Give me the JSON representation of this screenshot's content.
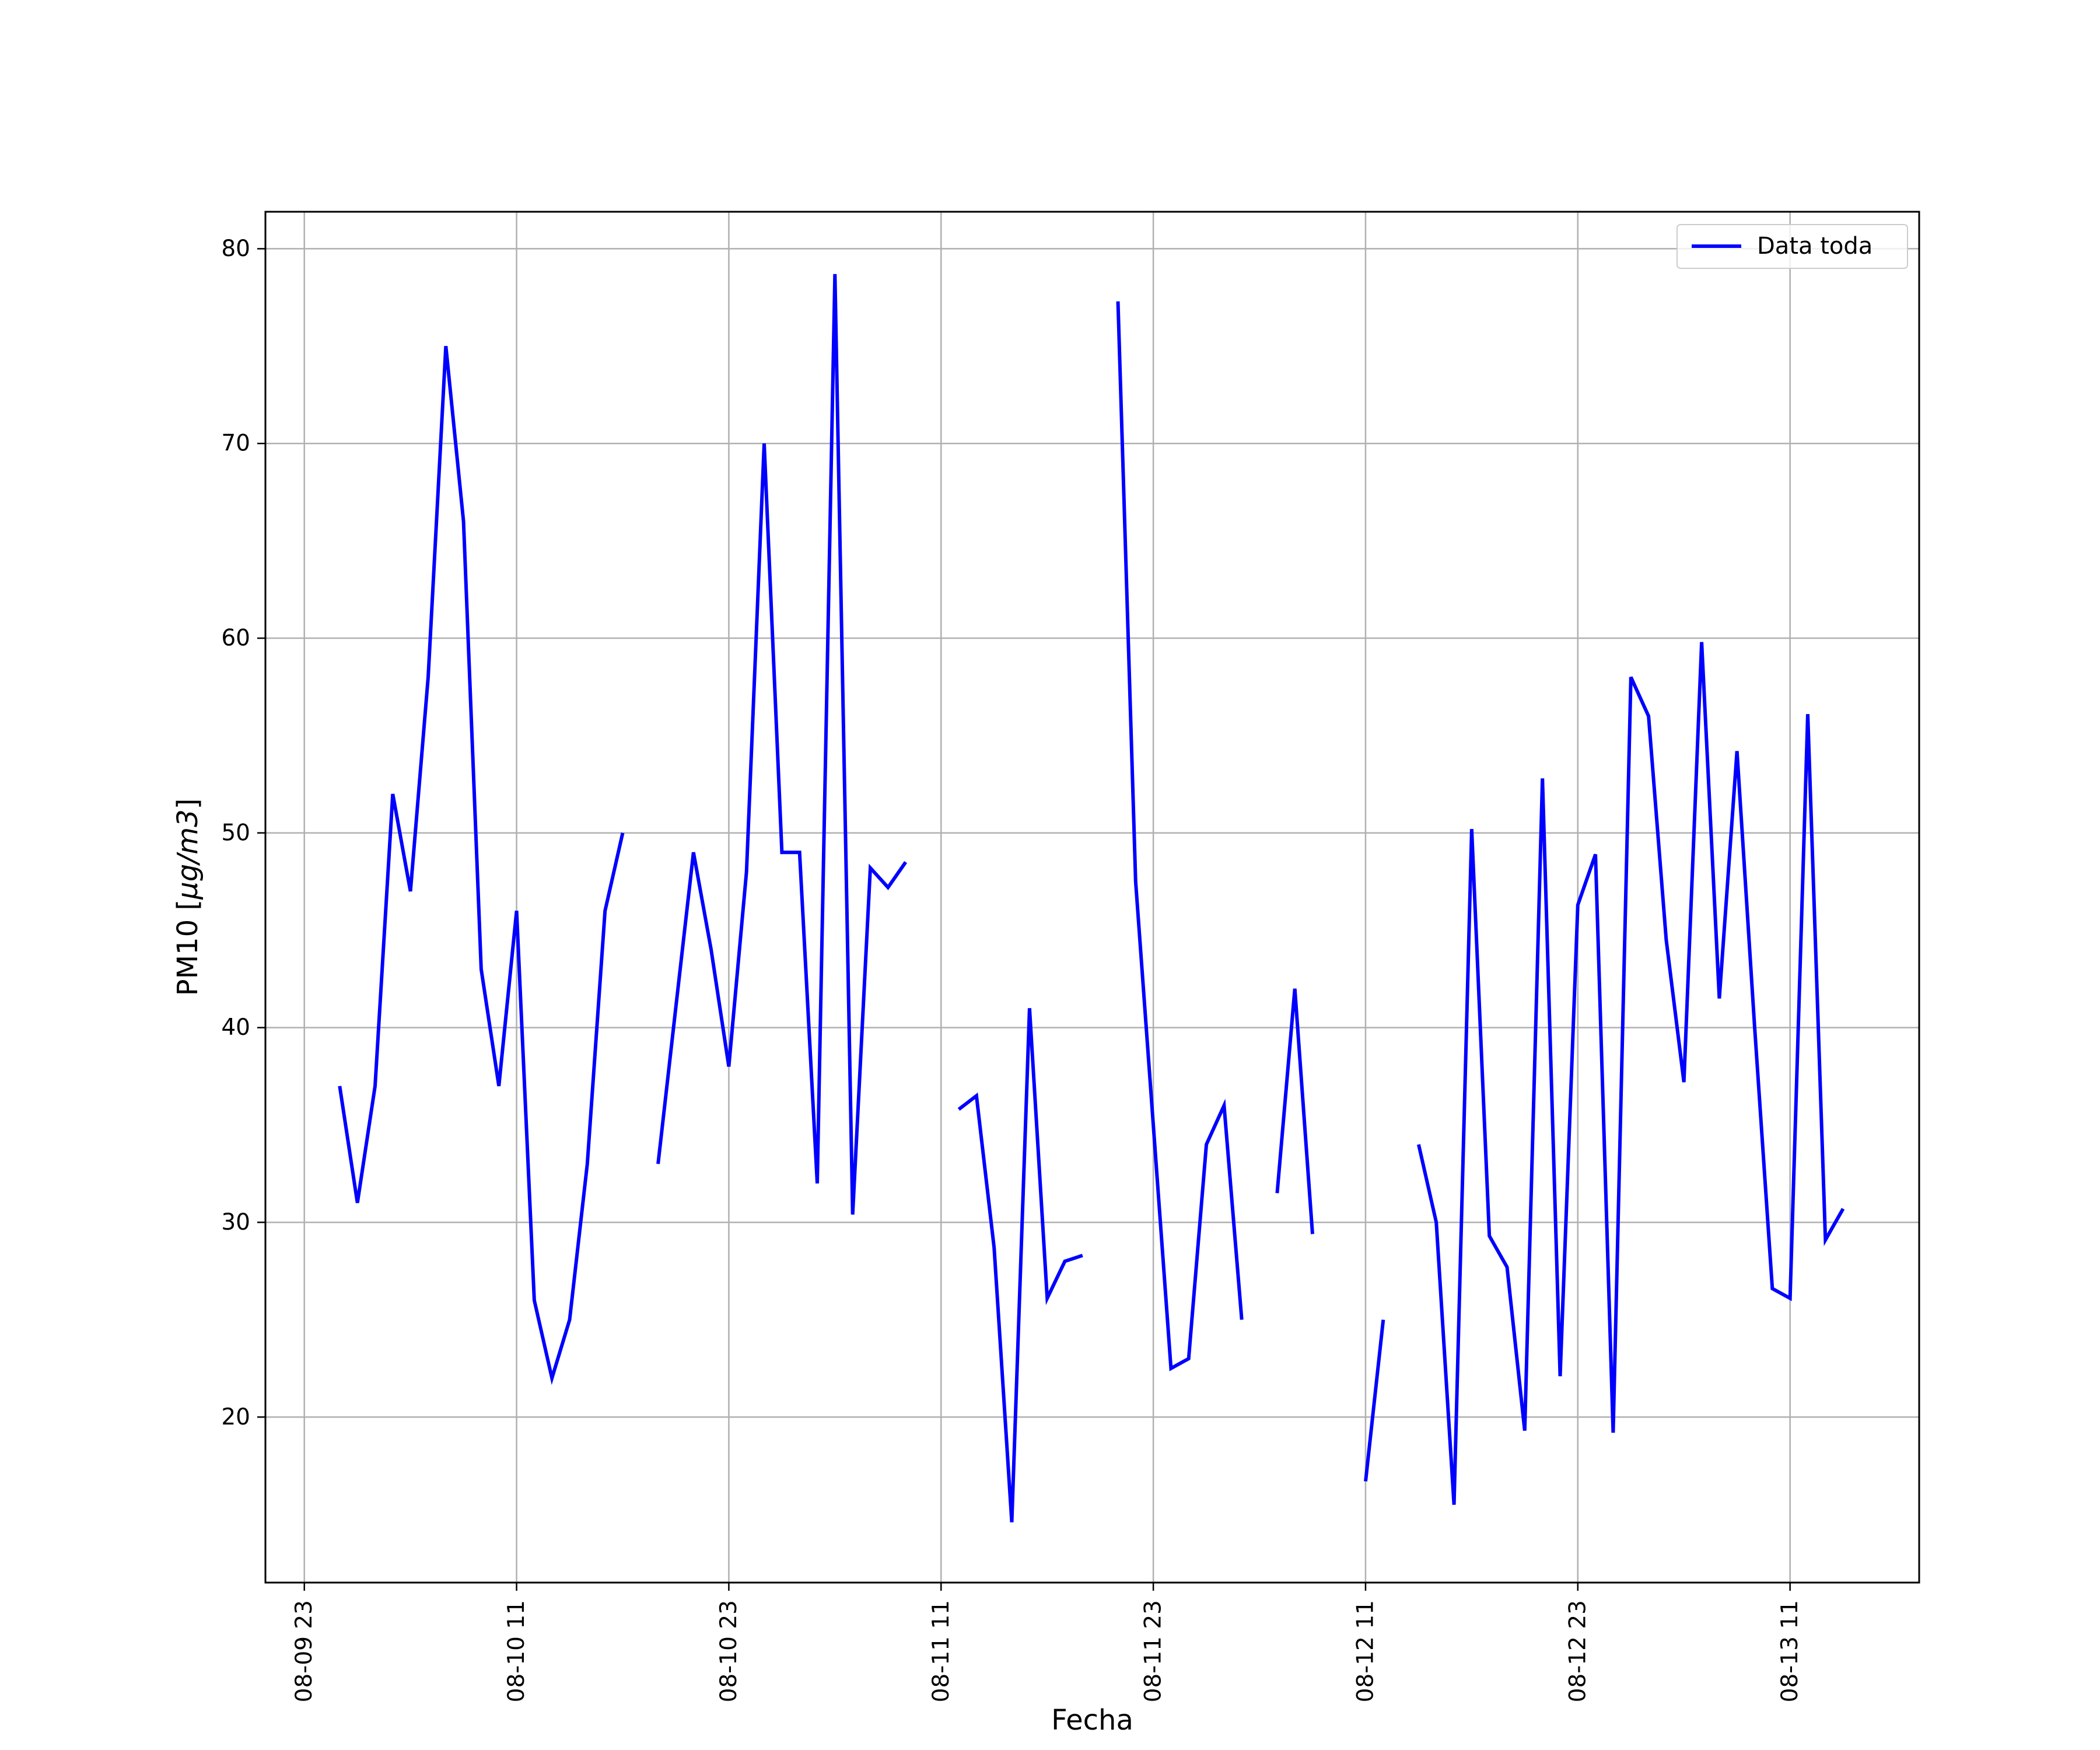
{
  "chart_data": {
    "type": "line",
    "title": "",
    "xlabel": "Fecha",
    "ylabel_prefix": "PM10 [",
    "ylabel_units": "μg/m3",
    "ylabel_suffix": "]",
    "x_ticks": [
      "08-09 23",
      "08-10 11",
      "08-10 23",
      "08-11 11",
      "08-11 23",
      "08-12 11",
      "08-12 23",
      "08-13 11"
    ],
    "y_ticks": [
      20,
      30,
      40,
      50,
      60,
      70,
      80
    ],
    "ylim": [
      11.5,
      81.9
    ],
    "xlim_hours": [
      -2.2,
      91.3
    ],
    "grid": true,
    "legend_position": "top-right",
    "series": [
      {
        "name": "Data toda",
        "color": "#0000ff",
        "segments": [
          [
            [
              2,
              37
            ],
            [
              3,
              31
            ],
            [
              4,
              37
            ],
            [
              5,
              52
            ],
            [
              6,
              47
            ],
            [
              7,
              58
            ],
            [
              8,
              75
            ],
            [
              9,
              66
            ],
            [
              10,
              43
            ],
            [
              11,
              37
            ],
            [
              12,
              46
            ],
            [
              13,
              26
            ],
            [
              14,
              22
            ],
            [
              15,
              25
            ],
            [
              16,
              33
            ],
            [
              17,
              46
            ],
            [
              18,
              50
            ]
          ],
          [
            [
              20,
              33
            ],
            [
              21,
              41
            ],
            [
              22,
              49
            ],
            [
              23,
              44
            ],
            [
              24,
              38
            ],
            [
              25,
              48
            ],
            [
              26,
              70
            ],
            [
              27,
              49
            ],
            [
              28,
              49
            ],
            [
              29,
              32
            ],
            [
              30,
              78.7
            ],
            [
              31,
              30.4
            ],
            [
              32,
              48.2
            ],
            [
              33,
              47.2
            ],
            [
              34,
              48.5
            ]
          ],
          [
            [
              37,
              35.8
            ],
            [
              38,
              36.5
            ],
            [
              39,
              28.7
            ],
            [
              40,
              14.6
            ],
            [
              41,
              41
            ],
            [
              42,
              26.1
            ],
            [
              43,
              28
            ],
            [
              44,
              28.3
            ]
          ],
          [
            [
              46,
              77.3
            ],
            [
              47,
              47.5
            ],
            [
              48,
              35
            ],
            [
              49,
              22.5
            ],
            [
              50,
              23
            ],
            [
              51,
              34
            ],
            [
              52,
              36
            ],
            [
              53,
              25
            ]
          ],
          [
            [
              55,
              31.5
            ],
            [
              56,
              42
            ],
            [
              57,
              29.4
            ]
          ],
          [
            [
              60,
              16.7
            ],
            [
              61,
              25
            ]
          ],
          [
            [
              63,
              34
            ],
            [
              64,
              30
            ],
            [
              65,
              15.5
            ],
            [
              66,
              50.2
            ],
            [
              67,
              29.3
            ],
            [
              68,
              27.7
            ],
            [
              69,
              19.3
            ],
            [
              70,
              52.8
            ],
            [
              71,
              22.1
            ],
            [
              72,
              46.3
            ],
            [
              73,
              48.9
            ],
            [
              74,
              19.2
            ],
            [
              75,
              58
            ],
            [
              76,
              56
            ],
            [
              77,
              44.5
            ],
            [
              78,
              37.2
            ],
            [
              79,
              59.8
            ],
            [
              80,
              41.5
            ],
            [
              81,
              54.2
            ],
            [
              82,
              40
            ],
            [
              83,
              26.6
            ],
            [
              84,
              26.1
            ],
            [
              85,
              56.1
            ],
            [
              86,
              29.1
            ],
            [
              87,
              30.7
            ]
          ]
        ]
      }
    ]
  }
}
